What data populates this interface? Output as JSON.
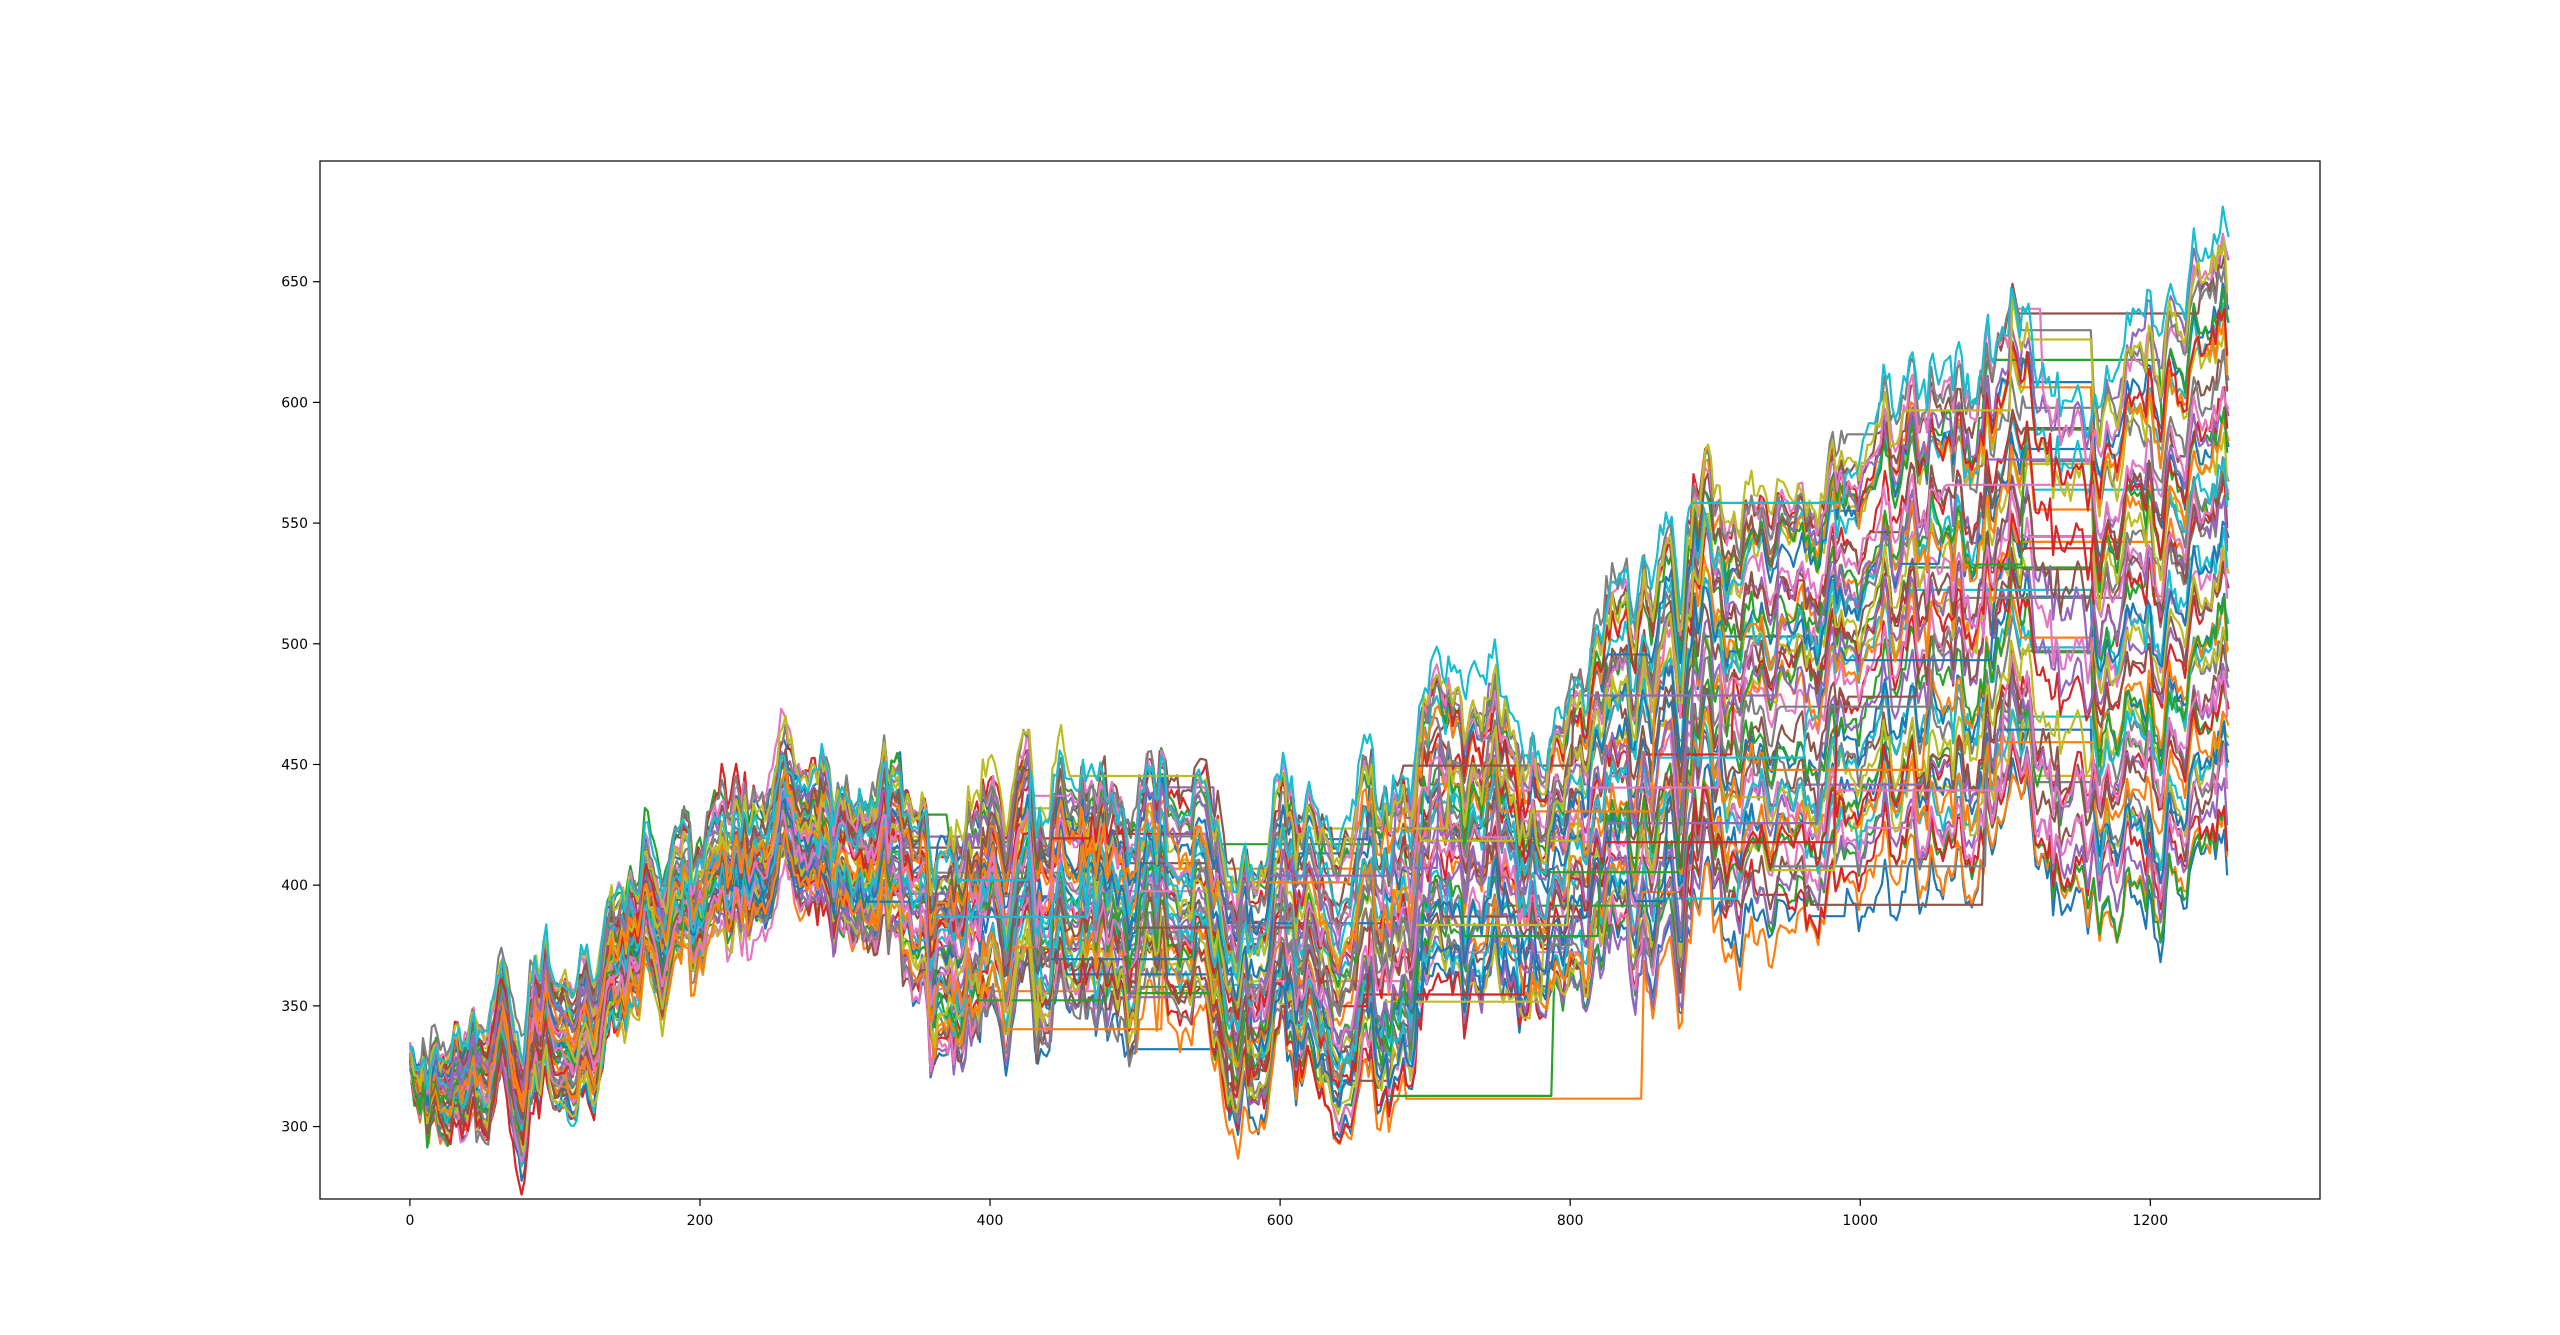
{
  "chart_data": {
    "type": "line",
    "title": "",
    "xlabel": "",
    "ylabel": "",
    "xlim": [
      -62,
      1317
    ],
    "ylim": [
      270,
      700
    ],
    "x_ticks": [
      0,
      200,
      400,
      600,
      800,
      1000,
      1200
    ],
    "y_ticks": [
      300,
      350,
      400,
      450,
      500,
      550,
      600,
      650
    ],
    "x_tick_labels": [
      "0",
      "200",
      "400",
      "600",
      "800",
      "1000",
      "1200"
    ],
    "y_tick_labels": [
      "300",
      "350",
      "400",
      "450",
      "500",
      "550",
      "600",
      "650"
    ],
    "grid": false,
    "legend": "none",
    "series_count": 60,
    "x_range": [
      0,
      1254
    ],
    "palette": [
      "#1f77b4",
      "#ff7f0e",
      "#2ca02c",
      "#d62728",
      "#9467bd",
      "#8c564b",
      "#e377c2",
      "#7f7f7f",
      "#bcbd22",
      "#17becf"
    ],
    "series_envelope": {
      "x": [
        0,
        20,
        100,
        200,
        250,
        310,
        330,
        400,
        470,
        500,
        550,
        600,
        650,
        710,
        780,
        850,
        950,
        970,
        1050,
        1110,
        1160,
        1200,
        1254
      ],
      "upper": [
        320,
        318,
        368,
        418,
        432,
        452,
        440,
        438,
        435,
        420,
        432,
        425,
        438,
        478,
        445,
        535,
        580,
        560,
        630,
        620,
        590,
        640,
        680
      ],
      "lower": [
        312,
        290,
        322,
        382,
        392,
        396,
        372,
        342,
        342,
        332,
        340,
        322,
        316,
        352,
        338,
        372,
        400,
        378,
        425,
        420,
        384,
        395,
        440
      ]
    }
  }
}
